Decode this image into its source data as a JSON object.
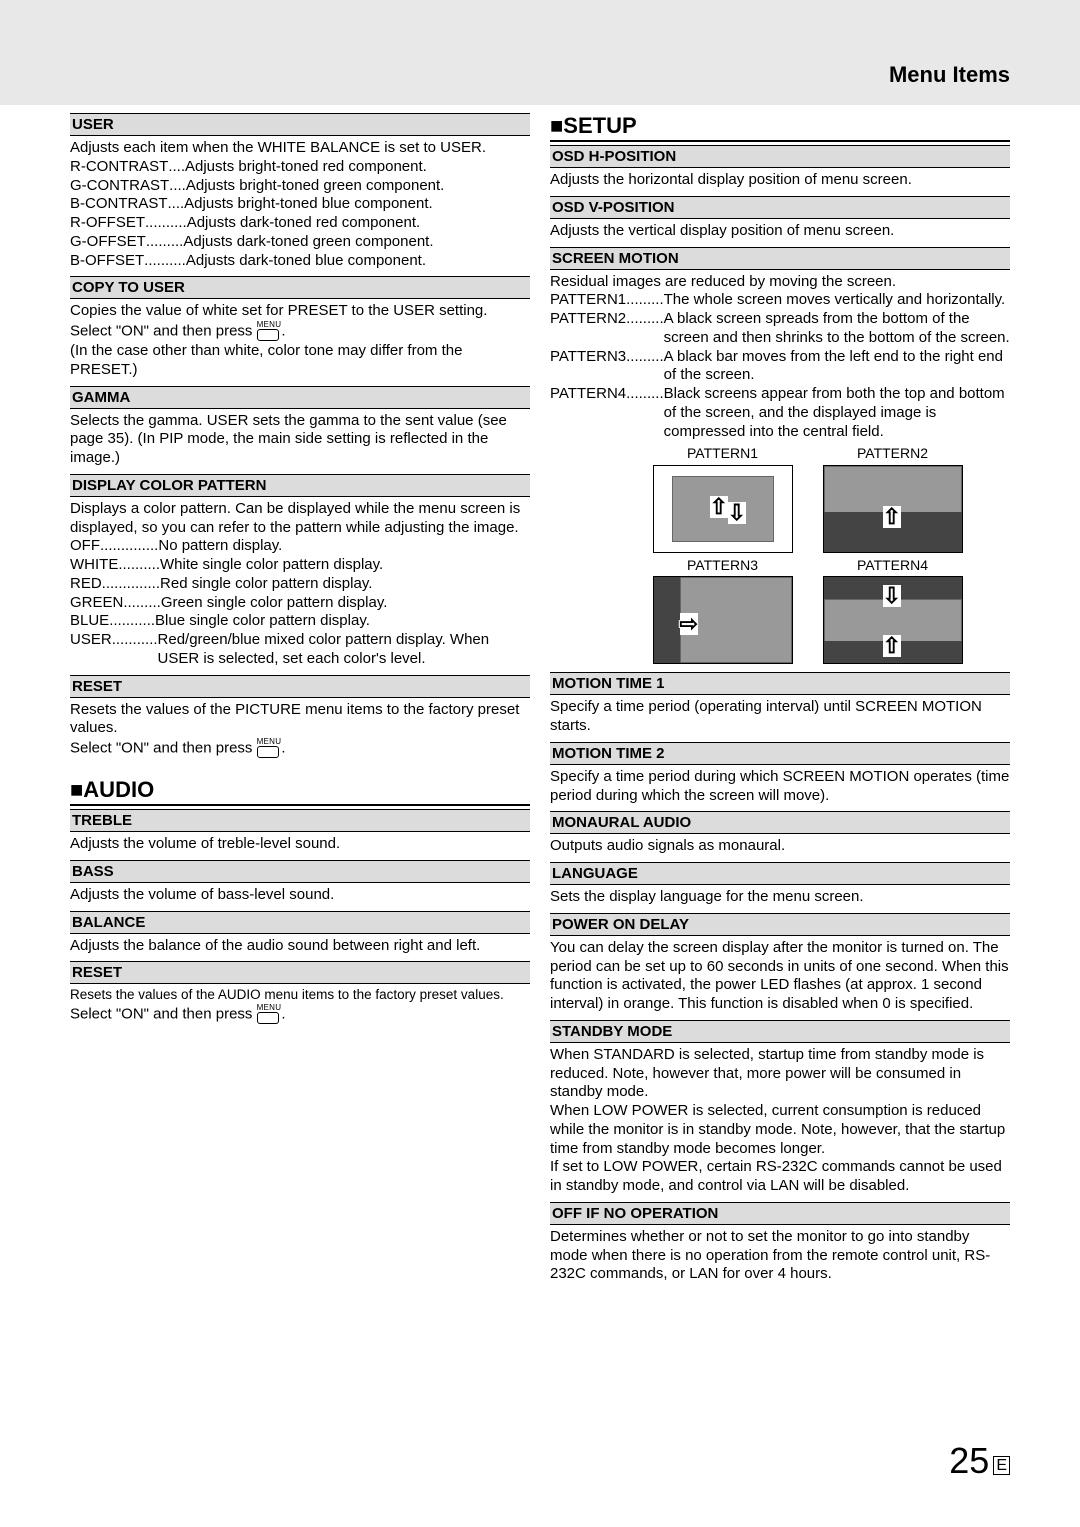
{
  "header": {
    "title": "Menu Items"
  },
  "left": {
    "user": {
      "head": "USER",
      "intro": "Adjusts each item when the WHITE BALANCE is set to USER.",
      "rows": [
        {
          "term": "R-CONTRAST",
          "dots": "....",
          "desc": "Adjusts bright-toned red component."
        },
        {
          "term": "G-CONTRAST",
          "dots": "....",
          "desc": "Adjusts bright-toned green component."
        },
        {
          "term": "B-CONTRAST",
          "dots": "....",
          "desc": "Adjusts bright-toned blue component."
        },
        {
          "term": "R-OFFSET",
          "dots": "..........",
          "desc": "Adjusts dark-toned red component."
        },
        {
          "term": "G-OFFSET",
          "dots": " .........",
          "desc": "Adjusts dark-toned green component."
        },
        {
          "term": "B-OFFSET",
          "dots": "..........",
          "desc": "Adjusts dark-toned blue component."
        }
      ]
    },
    "copy": {
      "head": "COPY TO USER",
      "l1": "Copies the value of white set for PRESET to the USER setting.",
      "l2a": "Select \"ON\" and then press ",
      "l2b": ".",
      "l3": "(In the case other than white, color tone may differ from the PRESET.)"
    },
    "gamma": {
      "head": "GAMMA",
      "body": "Selects the gamma. USER sets the gamma to the sent value (see page 35). (In PIP mode, the main side setting is reflected in the image.)"
    },
    "dcp": {
      "head": "DISPLAY COLOR PATTERN",
      "intro": "Displays a color pattern. Can be displayed while the menu screen is displayed, so you can refer to the pattern while adjusting the image.",
      "rows": [
        {
          "term": "OFF",
          "dots": " ..............",
          "desc": "No pattern display."
        },
        {
          "term": "WHITE",
          "dots": "..........",
          "desc": "White single color pattern display."
        },
        {
          "term": "RED",
          "dots": "..............",
          "desc": "Red single color pattern display."
        },
        {
          "term": "GREEN",
          "dots": ".........",
          "desc": "Green single color pattern display."
        },
        {
          "term": "BLUE",
          "dots": " ...........",
          "desc": "Blue single color pattern display."
        },
        {
          "term": "USER",
          "dots": "...........",
          "desc": "Red/green/blue mixed color pattern display. When USER is selected, set each color's level."
        }
      ]
    },
    "reset1": {
      "head": "RESET",
      "l1": "Resets the values of the PICTURE menu items to the factory preset values.",
      "l2a": "Select \"ON\" and then press ",
      "l2b": "."
    },
    "audio": {
      "title": "■AUDIO",
      "treble": {
        "head": "TREBLE",
        "body": "Adjusts the volume of treble-level sound."
      },
      "bass": {
        "head": "BASS",
        "body": "Adjusts the volume of bass-level sound."
      },
      "balance": {
        "head": "BALANCE",
        "body": "Adjusts the balance of the audio sound between right and left."
      },
      "reset": {
        "head": "RESET",
        "l1": "Resets the values of the AUDIO menu items to the factory preset values.",
        "l2a": "Select \"ON\" and then press ",
        "l2b": "."
      }
    }
  },
  "right": {
    "setup": {
      "title": "■SETUP"
    },
    "osdh": {
      "head": "OSD H-POSITION",
      "body": "Adjusts the horizontal display position of menu screen."
    },
    "osdv": {
      "head": "OSD V-POSITION",
      "body": "Adjusts the vertical display position of menu screen."
    },
    "motion": {
      "head": "SCREEN MOTION",
      "intro": "Residual images are reduced by moving the screen.",
      "rows": [
        {
          "term": "PATTERN1",
          "dots": " .........",
          "desc": "The whole screen moves vertically and horizontally."
        },
        {
          "term": "PATTERN2",
          "dots": " .........",
          "desc": "A black screen spreads from the bottom of the screen and then shrinks to the bottom of the screen."
        },
        {
          "term": "PATTERN3",
          "dots": " .........",
          "desc": "A black bar moves from the left end to the right end of the screen."
        },
        {
          "term": "PATTERN4",
          "dots": " .........",
          "desc": "Black screens appear from both the top and bottom of the screen, and the displayed image is compressed into the central field."
        }
      ],
      "labels": {
        "p1": "PATTERN1",
        "p2": "PATTERN2",
        "p3": "PATTERN3",
        "p4": "PATTERN4"
      }
    },
    "mt1": {
      "head": "MOTION TIME 1",
      "body": "Specify a time period (operating interval) until SCREEN MOTION starts."
    },
    "mt2": {
      "head": "MOTION TIME 2",
      "body": "Specify a time period during which SCREEN MOTION operates (time period during which the screen will move)."
    },
    "mono": {
      "head": "MONAURAL AUDIO",
      "body": "Outputs audio signals as monaural."
    },
    "lang": {
      "head": "LANGUAGE",
      "body": "Sets the display language for the menu screen."
    },
    "pod": {
      "head": "POWER ON DELAY",
      "body": "You can delay the screen display after the monitor is turned on. The period can be set up to 60 seconds in units of one second. When this function is activated, the power LED flashes (at approx. 1 second interval) in orange. This function is disabled when 0 is specified."
    },
    "standby": {
      "head": "STANDBY MODE",
      "body": "When STANDARD is selected, startup time from standby mode is reduced. Note, however that, more power will be consumed in standby mode.\nWhen LOW POWER is selected, current consumption is reduced while the monitor is in standby mode. Note, however, that the startup time from standby mode becomes longer.\nIf set to LOW POWER, certain RS-232C commands cannot be used in standby mode, and control via LAN will be disabled."
    },
    "offnoop": {
      "head": "OFF IF NO OPERATION",
      "body": "Determines whether or not to set the monitor to go into standby mode when there is no operation from the remote control unit, RS-232C commands, or LAN for over 4 hours."
    }
  },
  "menuIcon": "MENU",
  "pageNumber": "25",
  "pageE": "E"
}
